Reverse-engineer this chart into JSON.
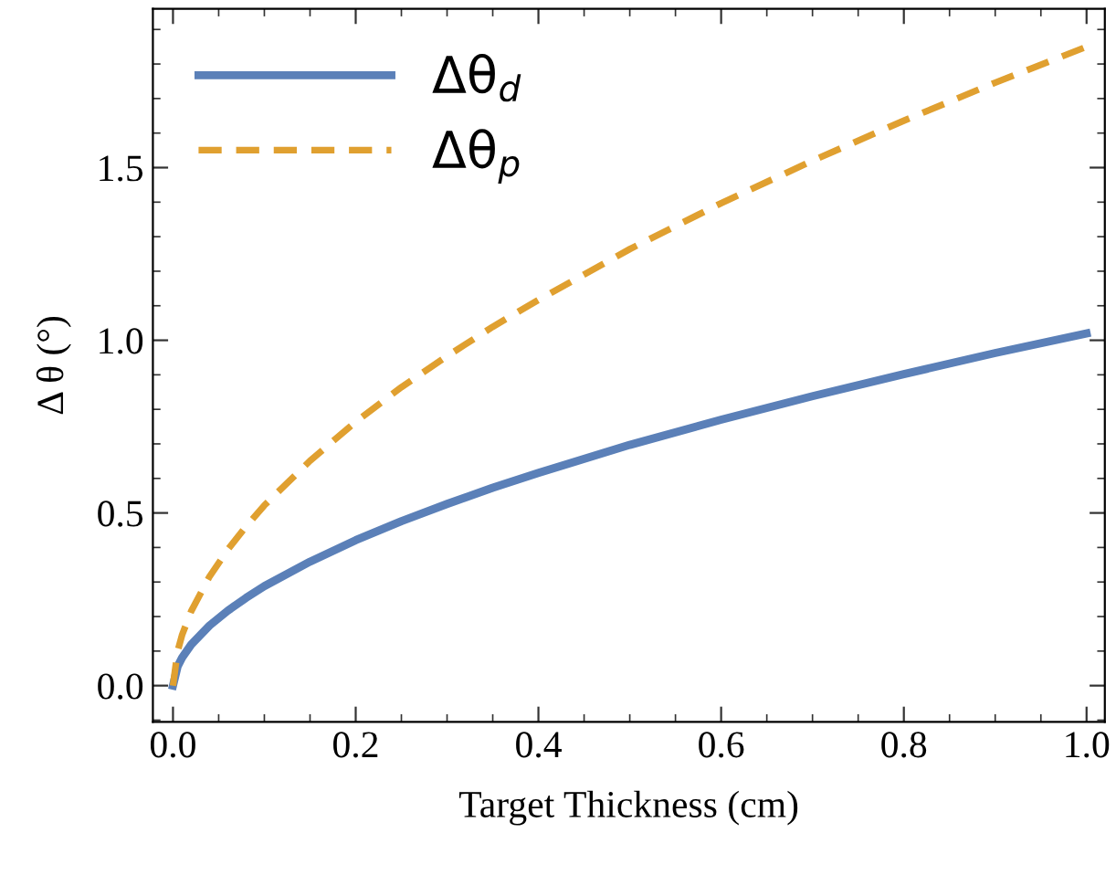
{
  "chart_data": {
    "type": "line",
    "xlabel": "Target Thickness (cm)",
    "ylabel": "Δ θ (°)",
    "x": [
      0,
      0.005,
      0.01,
      0.02,
      0.04,
      0.06,
      0.08,
      0.1,
      0.15,
      0.2,
      0.25,
      0.3,
      0.35,
      0.4,
      0.5,
      0.6,
      0.7,
      0.8,
      0.9,
      1.0
    ],
    "series": [
      {
        "name": "Δθ$_{d}$",
        "color": "#5b80b8",
        "line_style": "solid",
        "values": [
          0,
          0.055,
          0.081,
          0.119,
          0.174,
          0.217,
          0.254,
          0.288,
          0.359,
          0.421,
          0.476,
          0.526,
          0.573,
          0.616,
          0.697,
          0.77,
          0.838,
          0.902,
          0.963,
          1.02
        ]
      },
      {
        "name": "Δθ$_{p}$",
        "color": "#e0a030",
        "line_style": "dashed",
        "values": [
          0,
          0.099,
          0.147,
          0.216,
          0.316,
          0.394,
          0.461,
          0.522,
          0.651,
          0.764,
          0.864,
          0.954,
          1.039,
          1.117,
          1.264,
          1.397,
          1.52,
          1.636,
          1.746,
          1.85
        ]
      }
    ],
    "xlim": [
      -0.022,
      1.02
    ],
    "ylim": [
      -0.105,
      1.96
    ],
    "xticks": [
      {
        "value": 0,
        "label": "0.0"
      },
      0.2,
      0.4,
      0.6,
      0.8,
      {
        "value": 1,
        "label": "1.0"
      }
    ],
    "yticks": [
      {
        "value": 0,
        "label": "0.0"
      },
      0.5,
      {
        "value": 1,
        "label": "1.0"
      },
      1.5
    ],
    "grid": false,
    "legend": "top left",
    "marker": "none"
  }
}
